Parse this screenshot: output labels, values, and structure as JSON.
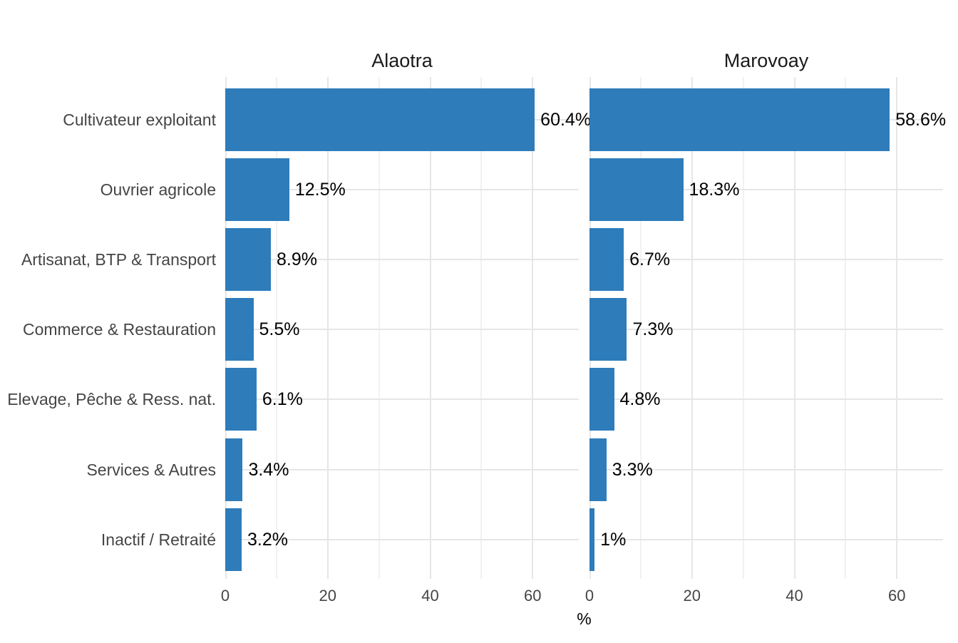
{
  "chart_data": {
    "type": "bar",
    "orientation": "horizontal",
    "title": "",
    "xlabel": "%",
    "ylabel": "",
    "categories": [
      "Cultivateur exploitant",
      "Ouvrier agricole",
      "Artisanat, BTP & Transport",
      "Commerce & Restauration",
      "Elevage, Pêche & Ress. nat.",
      "Services & Autres",
      "Inactif / Retraité"
    ],
    "facets": [
      {
        "title": "Alaotra",
        "values": [
          60.4,
          12.5,
          8.9,
          5.5,
          6.1,
          3.4,
          3.2
        ],
        "labels": [
          "60.4%",
          "12.5%",
          "8.9%",
          "5.5%",
          "6.1%",
          "3.4%",
          "3.2%"
        ]
      },
      {
        "title": "Marovoay",
        "values": [
          58.6,
          18.3,
          6.7,
          7.3,
          4.8,
          3.3,
          1
        ],
        "labels": [
          "58.6%",
          "18.3%",
          "6.7%",
          "7.3%",
          "4.8%",
          "3.3%",
          "1%"
        ]
      }
    ],
    "x_ticks": [
      0,
      20,
      40,
      60
    ],
    "x_minor_gridlines": [
      10,
      30,
      50
    ],
    "xlim": [
      0,
      69
    ],
    "grid": "major-and-minor-vertical, major-horizontal",
    "legend": "none",
    "colors": {
      "bar": "#2e7cba",
      "grid_major": "#e6e6e6",
      "grid_minor": "#f1f1f1",
      "axis_text": "#454545",
      "strip_text": "#1a1a1a",
      "value_label": "#000000",
      "background": "#ffffff"
    }
  }
}
